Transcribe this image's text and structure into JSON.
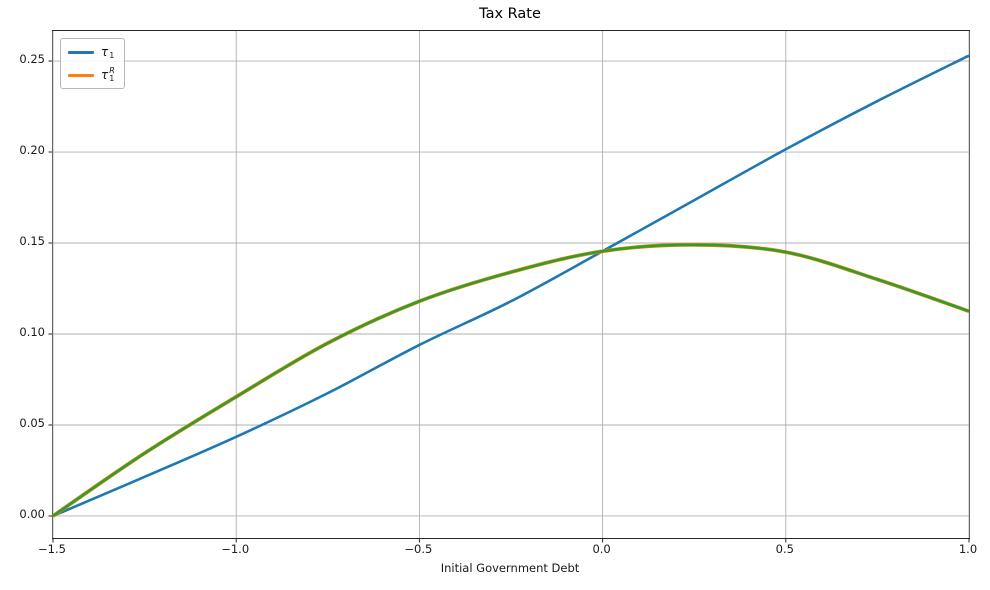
{
  "title": "Tax Rate",
  "xlabel": "Initial Government Debt",
  "colors": {
    "blue": "#1f77b4",
    "orange": "#ff7f0e",
    "green": "#2ca02c",
    "grid": "#b0b0b0",
    "spine": "#262626",
    "background": "#ffffff"
  },
  "chart_data": {
    "type": "line",
    "title": "Tax Rate",
    "xlabel": "Initial Government Debt",
    "ylabel": "",
    "grid": true,
    "legend_position": "upper left",
    "xlim": [
      -1.5,
      1.0
    ],
    "ylim": [
      -0.0121,
      0.2665
    ],
    "x_tick_values": [
      -1.5,
      -1.0,
      -0.5,
      0.0,
      0.5,
      1.0
    ],
    "x_tick_labels": [
      "−1.5",
      "−1.0",
      "−0.5",
      "0.0",
      "0.5",
      "1.0"
    ],
    "y_tick_values": [
      0.0,
      0.05,
      0.1,
      0.15,
      0.2,
      0.25
    ],
    "y_tick_labels": [
      "0.00",
      "0.05",
      "0.10",
      "0.15",
      "0.20",
      "0.25"
    ],
    "x": [
      -1.5,
      -1.25,
      -1.0,
      -0.75,
      -0.5,
      -0.25,
      0.0,
      0.25,
      0.5,
      0.75,
      1.0
    ],
    "series": [
      {
        "label": "τ_1",
        "color": "#1f77b4",
        "in_legend": true,
        "line_width": 2.6,
        "values": [
          0.0,
          0.0215,
          0.0435,
          0.0675,
          0.094,
          0.118,
          0.1455,
          0.1735,
          0.2015,
          0.228,
          0.253
        ]
      },
      {
        "label": "τ_1^R",
        "color": "#ff7f0e",
        "in_legend": true,
        "line_width": 3.8,
        "values": [
          0.0,
          0.0345,
          0.0655,
          0.095,
          0.118,
          0.134,
          0.1455,
          0.149,
          0.145,
          0.13,
          0.1125
        ]
      },
      {
        "label": "",
        "color": "#2ca02c",
        "in_legend": false,
        "line_width": 2.6,
        "values": [
          0.0,
          0.0345,
          0.0655,
          0.095,
          0.118,
          0.134,
          0.1455,
          0.149,
          0.145,
          0.13,
          0.1125
        ]
      }
    ],
    "legend": [
      {
        "base": "τ",
        "sub": "1",
        "sup": "",
        "color": "#1f77b4"
      },
      {
        "base": "τ",
        "sub": "1",
        "sup": "R",
        "color": "#ff7f0e"
      }
    ]
  }
}
